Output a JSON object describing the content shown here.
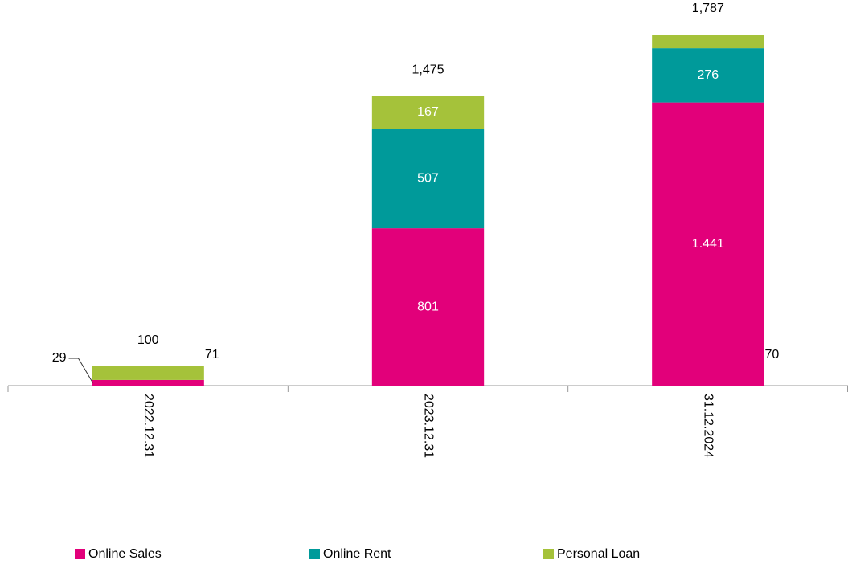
{
  "chart_data": {
    "type": "stacked_bar",
    "categories": [
      "2022.12.31",
      "2023.12.31",
      "31.12.2024"
    ],
    "series": [
      {
        "name": "Online Sales",
        "color": "#e2007a",
        "values": [
          29,
          801,
          1441
        ],
        "value_labels": [
          "29",
          "801",
          "1.441"
        ]
      },
      {
        "name": "Online Rent",
        "color": "#009a9a",
        "values": [
          null,
          507,
          276
        ]
      },
      {
        "name": "Personal Loan",
        "color": "#a5c23a",
        "values": [
          71,
          167,
          70
        ]
      }
    ],
    "totals": [
      100,
      1475,
      1787
    ],
    "total_labels": [
      "100",
      "1,475",
      "1,787"
    ],
    "legend": "bottom"
  }
}
